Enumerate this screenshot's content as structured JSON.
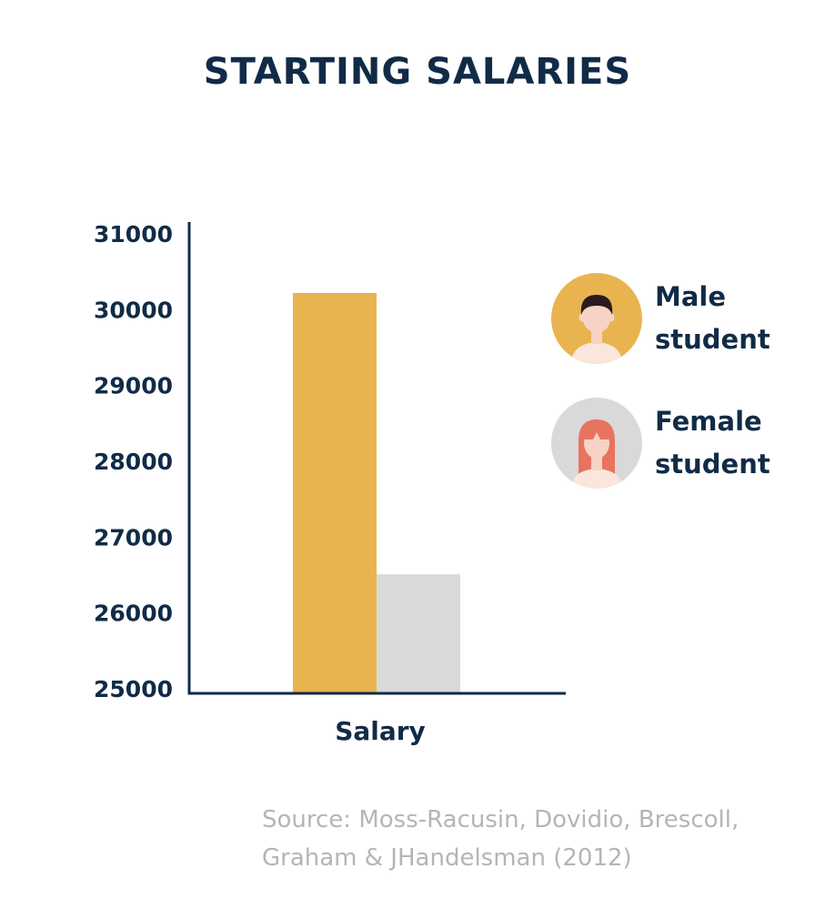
{
  "chart_data": {
    "type": "bar",
    "title": "STARTING SALARIES",
    "categories": [
      "Salary"
    ],
    "series": [
      {
        "name": "Male student",
        "values": [
          30220
        ],
        "color": "#e9b44f"
      },
      {
        "name": "Female student",
        "values": [
          26510
        ],
        "color": "#d9d9db"
      }
    ],
    "xlabel": "Salary",
    "ylabel": "",
    "ylim": [
      25000,
      31000
    ],
    "yticks": [
      "31000",
      "30000",
      "29000",
      "28000",
      "27000",
      "26000",
      "25000"
    ],
    "grid": false,
    "legend_position": "right"
  },
  "legend": {
    "male": {
      "line1": "Male",
      "line2": "student",
      "icon": "male-student-icon",
      "bg": "#e9b44f"
    },
    "female": {
      "line1": "Female",
      "line2": "student",
      "icon": "female-student-icon",
      "bg": "#d9d9db"
    }
  },
  "source": {
    "line1": "Source: Moss-Racusin, Dovidio, Brescoll,",
    "line2": "Graham & JHandelsman (2012)"
  },
  "colors": {
    "text": "#112b47",
    "axis": "#112b47",
    "source": "#b5b5b5"
  }
}
